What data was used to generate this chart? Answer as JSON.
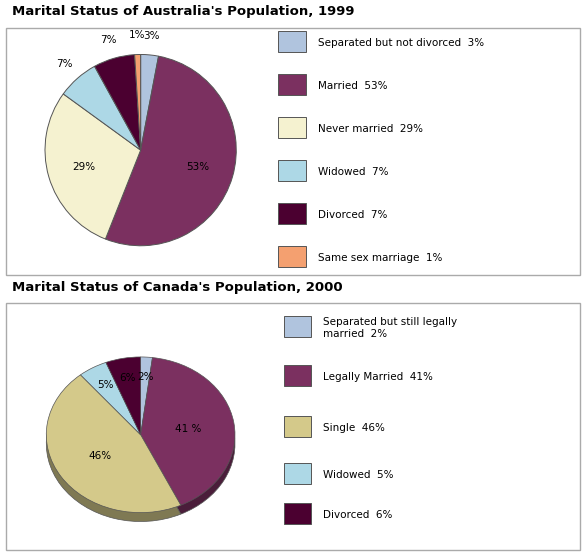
{
  "australia": {
    "title": "Marital Status of Australia's Population, 1999",
    "values": [
      3,
      53,
      29,
      7,
      7,
      1
    ],
    "colors": [
      "#b0c4de",
      "#7b3060",
      "#f5f2d0",
      "#add8e6",
      "#4b0030",
      "#f4a070"
    ],
    "pct_labels": [
      "3%",
      "53%",
      "29%",
      "7%",
      "7%",
      "1%"
    ],
    "legend_labels": [
      "Separated but not divorced",
      "Married",
      "Never married",
      "Widowed",
      "Divorced",
      "Same sex marriage"
    ],
    "legend_pcts": [
      "3%",
      "53%",
      "29%",
      "7%",
      "7%",
      "1%"
    ]
  },
  "canada": {
    "title": "Marital Status of Canada's Population, 2000",
    "values": [
      2,
      41,
      46,
      5,
      6
    ],
    "colors": [
      "#b0c4de",
      "#7b3060",
      "#d4c98a",
      "#add8e6",
      "#4b0030"
    ],
    "pct_labels": [
      "2%",
      "41 %",
      "46%",
      "5%",
      "6%"
    ],
    "legend_labels": [
      "Separated but still legally\nmarried",
      "Legally Married",
      "Single",
      "Widowed",
      "Divorced"
    ],
    "legend_pcts": [
      "2%",
      "41%",
      "46%",
      "5%",
      "6%"
    ]
  },
  "bg_color": "#ffffff",
  "border_color": "#aaaaaa",
  "title_color": "#000000",
  "font_size": 8,
  "title_font_size": 9.5
}
